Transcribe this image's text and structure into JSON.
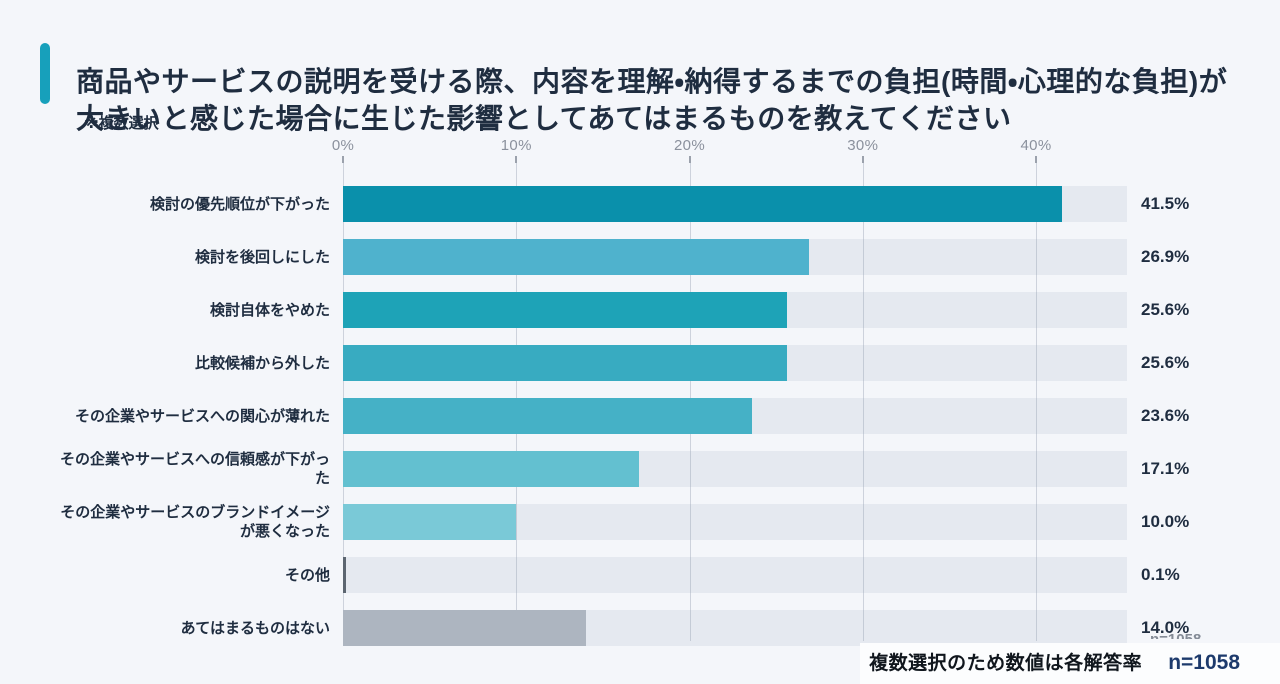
{
  "header": {
    "title": "商品やサービスの説明を受ける際、内容を理解・納得するまでの負担(時間・心理的な負担)が大きいと感じた場合に生じた影響としてあてはまるものを教えてください",
    "note": "※複数選択",
    "accent_color": "#17a0bb"
  },
  "chart_data": {
    "type": "bar",
    "orientation": "horizontal",
    "title": "商品やサービスの説明を受ける際、内容を理解・納得するまでの負担(時間・心理的な負担)が大きいと感じた場合に生じた影響としてあてはまるものを教えてください",
    "categories": [
      "検討の優先順位が下がった",
      "検討を後回しにした",
      "検討自体をやめた",
      "比較候補から外した",
      "その企業やサービスへの関心が薄れた",
      "その企業やサービスへの信頼感が下がった",
      "その企業やサービスのブランドイメージが悪くなった",
      "その他",
      "あてはまるものはない"
    ],
    "label_lines": [
      [
        "検討の優先順位が下がった"
      ],
      [
        "検討を後回しにした"
      ],
      [
        "検討自体をやめた"
      ],
      [
        "比較候補から外した"
      ],
      [
        "その企業やサービスへの関心が薄れた"
      ],
      [
        "その企業やサービスへの信頼感が下がっ",
        "た"
      ],
      [
        "その企業やサービスのブランドイメージ",
        "が悪くなった"
      ],
      [
        "その他"
      ],
      [
        "あてはまるものはない"
      ]
    ],
    "values": [
      41.5,
      26.9,
      25.6,
      25.6,
      23.6,
      17.1,
      10.0,
      0.1,
      14.0
    ],
    "value_labels": [
      "41.5%",
      "26.9%",
      "25.6%",
      "25.6%",
      "23.6%",
      "17.1%",
      "10.0%",
      "0.1%",
      "14.0%"
    ],
    "bar_colors": [
      "#0a90ab",
      "#4fb2cd",
      "#1ea3b7",
      "#38abc1",
      "#45b1c6",
      "#63c0d0",
      "#7ac9d7",
      "#5c6570",
      "#adb5c0"
    ],
    "track_color": "#e5e9f0",
    "x_ticks": [
      "0%",
      "10%",
      "20%",
      "30%",
      "40%"
    ],
    "x_tick_values": [
      0,
      10,
      20,
      30,
      40
    ],
    "xlim": [
      0,
      45.25
    ],
    "grid": true,
    "legend": "none"
  },
  "footer": {
    "note": "複数選択のため数値は各解答率",
    "sample_size": "n=1058",
    "covered_fragment": "n=1058"
  }
}
